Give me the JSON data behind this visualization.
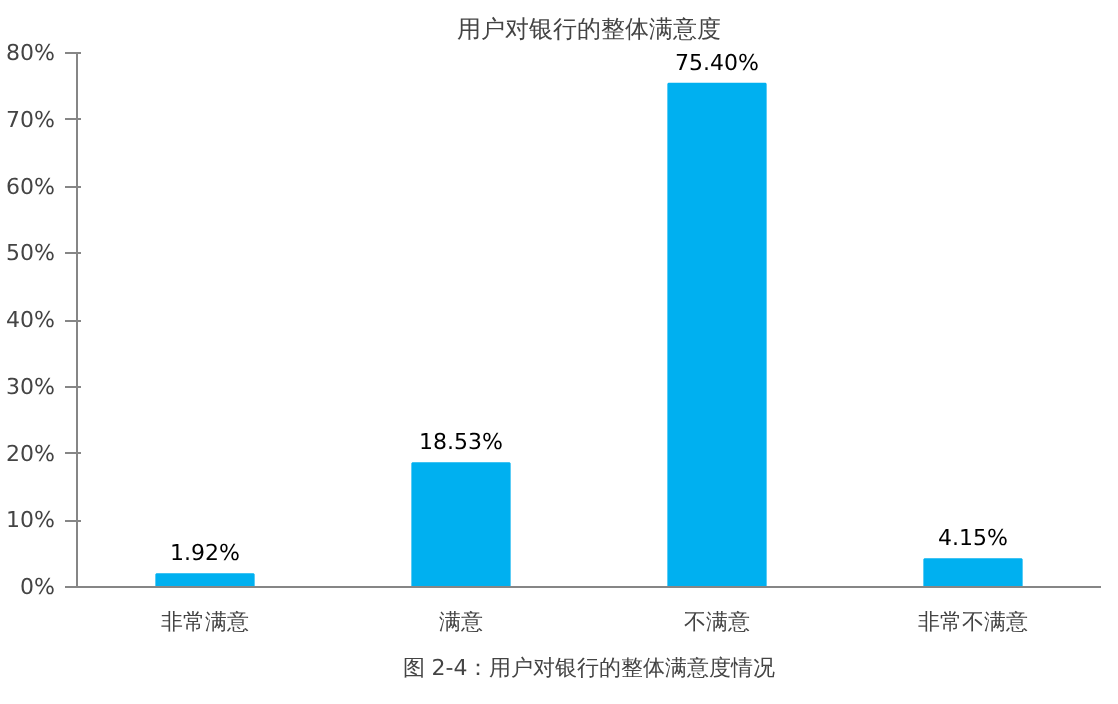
{
  "chart_data": {
    "type": "bar",
    "title": "用户对银行的整体满意度",
    "categories": [
      "非常满意",
      "满意",
      "不满意",
      "非常不满意"
    ],
    "values": [
      1.92,
      18.53,
      75.4,
      4.15
    ],
    "value_labels": [
      "1.92%",
      "18.53%",
      "75.40%",
      "4.15%"
    ],
    "color": "#00b0f0",
    "ylim": [
      0,
      80
    ],
    "yticks": [
      {
        "value": 0,
        "label": "0%"
      },
      {
        "value": 10,
        "label": "10%"
      },
      {
        "value": 20,
        "label": "20%"
      },
      {
        "value": 30,
        "label": "30%"
      },
      {
        "value": 40,
        "label": "40%"
      },
      {
        "value": 50,
        "label": "50%"
      },
      {
        "value": 60,
        "label": "60%"
      },
      {
        "value": 70,
        "label": "70%"
      },
      {
        "value": 80,
        "label": "80%"
      }
    ],
    "grid": false,
    "annotations": [
      "图 2-4：用户对银行的整体满意度情况"
    ]
  }
}
